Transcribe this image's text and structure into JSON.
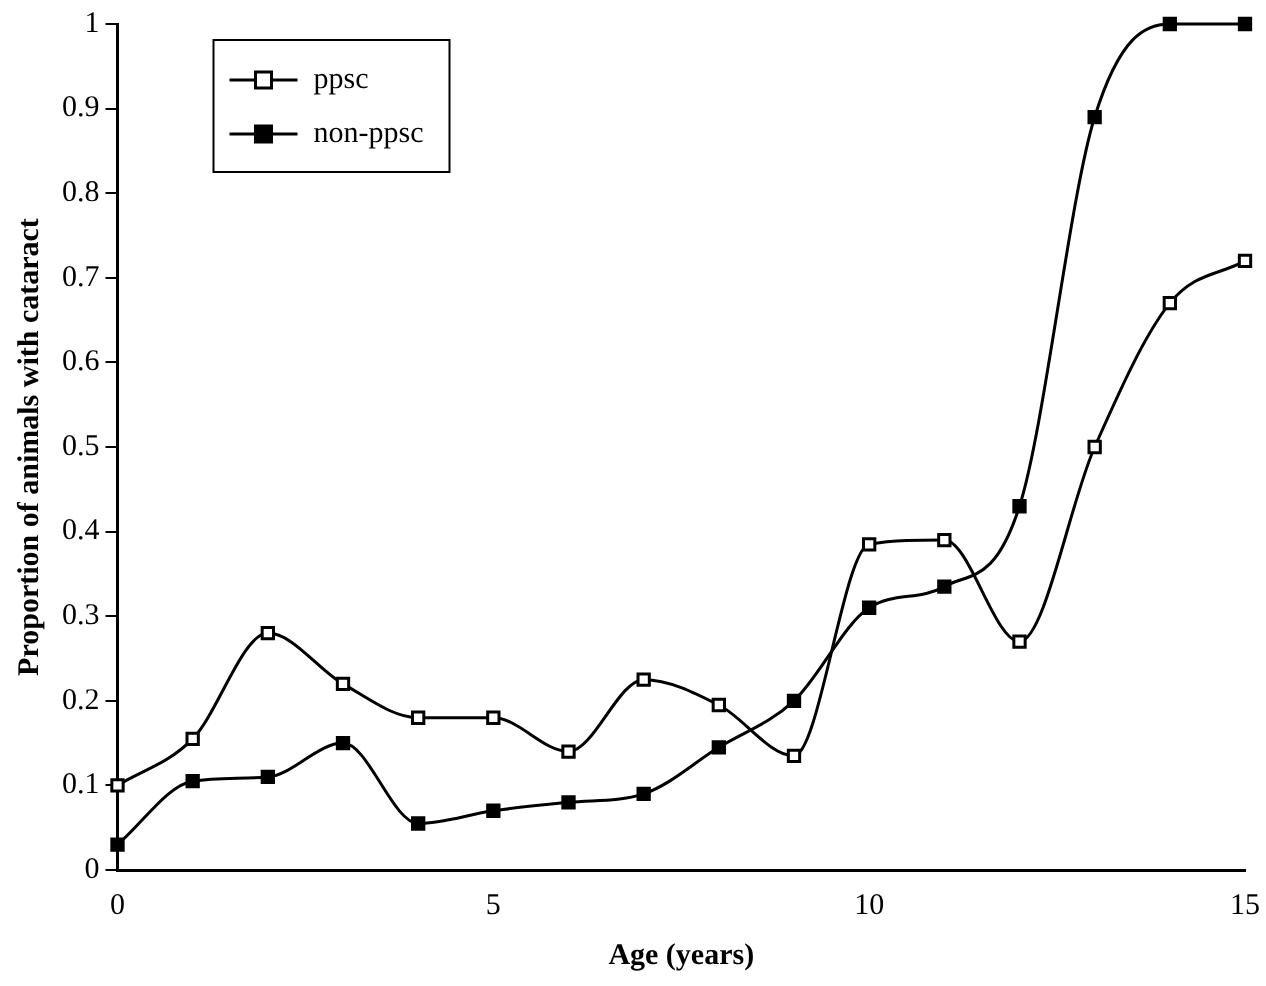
{
  "chart_data": {
    "type": "line",
    "xlabel": "Age (years)",
    "ylabel": "Proportion of animals with cataract",
    "x": [
      0,
      1,
      2,
      3,
      4,
      5,
      6,
      7,
      8,
      9,
      10,
      11,
      12,
      13,
      14,
      15
    ],
    "series": [
      {
        "name": "ppsc",
        "color": "#000000",
        "values": [
          0.1,
          0.155,
          0.28,
          0.22,
          0.18,
          0.18,
          0.14,
          0.225,
          0.195,
          0.135,
          0.385,
          0.39,
          0.27,
          0.5,
          0.67,
          0.72
        ]
      },
      {
        "name": "non-ppsc",
        "color": "#000000",
        "values": [
          0.03,
          0.105,
          0.11,
          0.15,
          0.055,
          0.07,
          0.08,
          0.09,
          0.145,
          0.2,
          0.31,
          0.335,
          0.43,
          0.89,
          1.0,
          1.0
        ]
      }
    ],
    "xlim": [
      0,
      15
    ],
    "xticks": [
      0,
      5,
      10,
      15
    ],
    "ylim": [
      0,
      1
    ],
    "yticks": [
      0,
      0.1,
      0.2,
      0.3,
      0.4,
      0.5,
      0.6,
      0.7,
      0.8,
      0.9,
      1
    ],
    "grid": false,
    "legend": "top left",
    "marker": "square",
    "line_style": "solid"
  }
}
